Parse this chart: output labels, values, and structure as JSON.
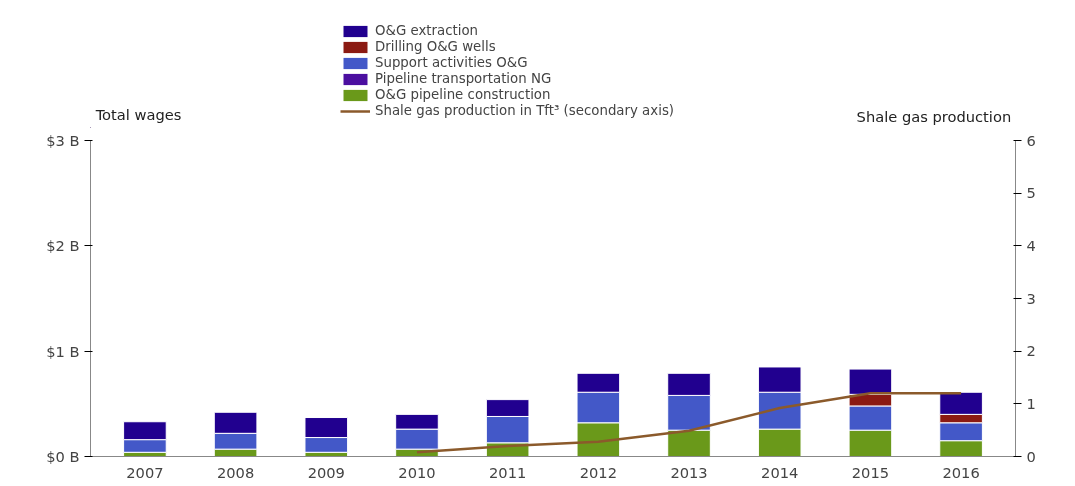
{
  "chart_data": {
    "type": "bar",
    "stacked": true,
    "categories": [
      "2007",
      "2008",
      "2009",
      "2010",
      "2011",
      "2012",
      "2013",
      "2014",
      "2015",
      "2016"
    ],
    "ylabel": "Total wages",
    "y2label": "Shale gas production",
    "ylim": [
      0,
      3
    ],
    "yticks": [
      {
        "value": 0,
        "label": "$0 B"
      },
      {
        "value": 1,
        "label": "$1 B"
      },
      {
        "value": 2,
        "label": "$2 B"
      },
      {
        "value": 3,
        "label": "$3 B"
      }
    ],
    "y2lim": [
      0,
      6
    ],
    "y2ticks": [
      0,
      1,
      2,
      3,
      4,
      5,
      6
    ],
    "legend": "top",
    "grid": false,
    "series": [
      {
        "name": "O&G pipeline construction",
        "color": "#6a991a",
        "values": [
          0.04,
          0.07,
          0.04,
          0.07,
          0.13,
          0.32,
          0.25,
          0.26,
          0.25,
          0.15
        ]
      },
      {
        "name": "Pipeline transportation NG",
        "color": "#4b0fa0",
        "values": [
          null,
          null,
          null,
          null,
          null,
          null,
          null,
          null,
          null,
          null
        ]
      },
      {
        "name": "Support activities O&G",
        "color": "#4358c8",
        "values": [
          0.12,
          0.15,
          0.14,
          0.19,
          0.25,
          0.29,
          0.33,
          0.35,
          0.23,
          0.17
        ]
      },
      {
        "name": "Drilling O&G wells",
        "color": "#8b1a12",
        "values": [
          null,
          null,
          null,
          null,
          null,
          null,
          null,
          null,
          0.11,
          0.08
        ]
      },
      {
        "name": "O&G extraction",
        "color": "#21008f",
        "values": [
          0.17,
          0.2,
          0.19,
          0.14,
          0.16,
          0.18,
          0.21,
          0.24,
          0.24,
          0.21
        ]
      },
      {
        "name": "Shale gas production in Tft³ (secondary axis)",
        "type": "line",
        "axis": "y2",
        "color": "#8b5a2b",
        "values": [
          null,
          null,
          null,
          0.08,
          0.2,
          0.28,
          0.49,
          0.92,
          1.2,
          1.2
        ]
      }
    ]
  }
}
